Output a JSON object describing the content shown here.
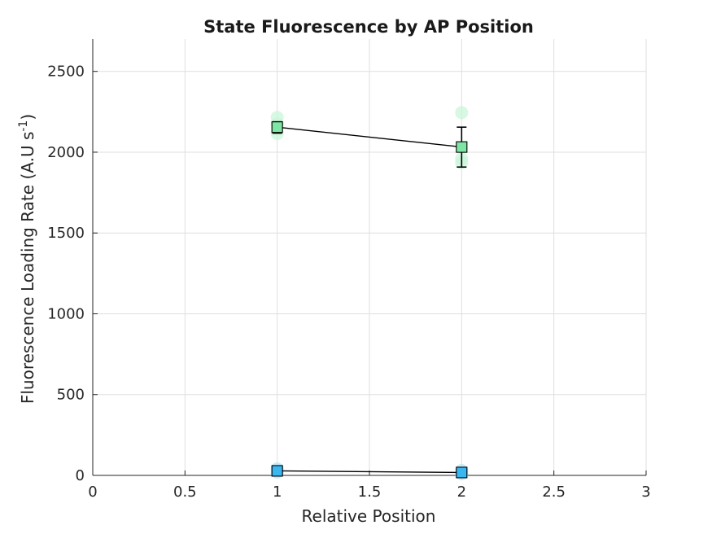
{
  "chart_data": {
    "type": "line",
    "title": "State Fluorescence by AP Position",
    "xlabel": "Relative Position",
    "ylabel": "Fluorescence Loading Rate (A.U s",
    "ylabel_sup": "-1",
    "ylabel_suffix": ")",
    "xlim": [
      0,
      3
    ],
    "ylim": [
      0,
      2700
    ],
    "xticks": [
      0,
      0.5,
      1,
      1.5,
      2,
      2.5,
      3
    ],
    "xtick_labels": [
      "0",
      "0.5",
      "1",
      "1.5",
      "2",
      "2.5",
      "3"
    ],
    "yticks": [
      0,
      500,
      1000,
      1500,
      2000,
      2500
    ],
    "ytick_labels": [
      "0",
      "500",
      "1000",
      "1500",
      "2000",
      "2500"
    ],
    "grid": true,
    "series": [
      {
        "color": "#7fe5a5",
        "scatter_color": "#c9f5d9",
        "x": [
          1,
          2
        ],
        "y": [
          2155,
          2032
        ],
        "err_low": [
          2118,
          1908
        ],
        "err_high": [
          2188,
          2155
        ],
        "raw_points": [
          {
            "x": 1,
            "y": 2215
          },
          {
            "x": 1,
            "y": 2175
          },
          {
            "x": 1,
            "y": 2115
          },
          {
            "x": 2,
            "y": 2245
          },
          {
            "x": 2,
            "y": 1960
          },
          {
            "x": 2,
            "y": 1935
          }
        ]
      },
      {
        "color": "#3ab7ef",
        "scatter_color": "#b6e6fa",
        "x": [
          1,
          2
        ],
        "y": [
          28,
          18
        ],
        "err_low": [
          15,
          6
        ],
        "err_high": [
          40,
          30
        ],
        "raw_points": [
          {
            "x": 1,
            "y": 40
          },
          {
            "x": 1,
            "y": 20
          },
          {
            "x": 2,
            "y": 30
          },
          {
            "x": 2,
            "y": 10
          }
        ]
      }
    ]
  }
}
